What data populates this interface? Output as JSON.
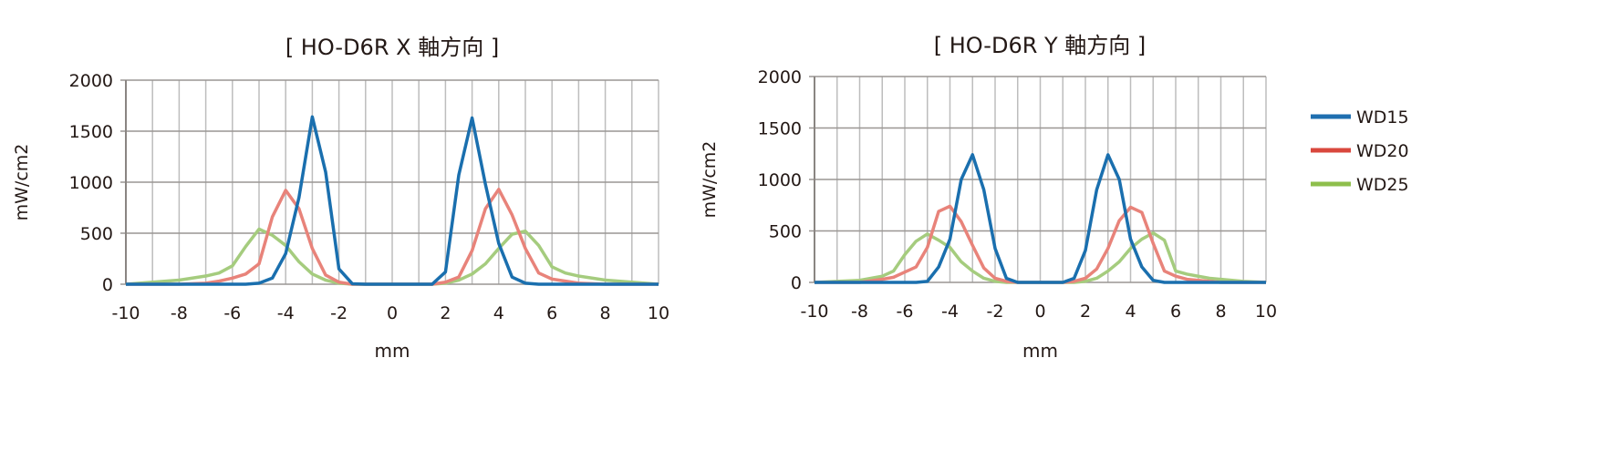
{
  "legend": [
    {
      "name": "WD15",
      "color": "#1a6fae"
    },
    {
      "name": "WD20",
      "color": "#e8837a"
    },
    {
      "name": "WD25",
      "color": "#a5cc7e"
    }
  ],
  "legend_colors": [
    "#1f6fb0",
    "#d9473d",
    "#8ebf4c"
  ],
  "chart_data": [
    {
      "type": "line",
      "title": "[ HO-D6R X 軸方向 ]",
      "xlabel": "mm",
      "ylabel": "mW/cm2",
      "xlim": [
        -10,
        10
      ],
      "ylim": [
        0,
        2000
      ],
      "xticks": [
        -10,
        -8,
        -6,
        -4,
        -2,
        0,
        2,
        4,
        6,
        8,
        10
      ],
      "yticks": [
        0,
        500,
        1000,
        1500,
        2000
      ],
      "series": [
        {
          "name": "WD15",
          "points": [
            [
              -10,
              0
            ],
            [
              -6,
              0
            ],
            [
              -5.5,
              0
            ],
            [
              -5,
              10
            ],
            [
              -4.5,
              60
            ],
            [
              -4,
              300
            ],
            [
              -3.5,
              850
            ],
            [
              -3,
              1640
            ],
            [
              -2.5,
              1100
            ],
            [
              -2,
              150
            ],
            [
              -1.5,
              5
            ],
            [
              -1,
              0
            ],
            [
              1.5,
              0
            ],
            [
              2,
              120
            ],
            [
              2.5,
              1070
            ],
            [
              3,
              1630
            ],
            [
              3.5,
              980
            ],
            [
              4,
              400
            ],
            [
              4.5,
              70
            ],
            [
              5,
              10
            ],
            [
              5.5,
              0
            ],
            [
              10,
              0
            ]
          ]
        },
        {
          "name": "WD20",
          "points": [
            [
              -10,
              0
            ],
            [
              -8,
              0
            ],
            [
              -7,
              10
            ],
            [
              -6.5,
              30
            ],
            [
              -6,
              60
            ],
            [
              -5.5,
              100
            ],
            [
              -5,
              200
            ],
            [
              -4.5,
              660
            ],
            [
              -4,
              920
            ],
            [
              -3.5,
              740
            ],
            [
              -3,
              350
            ],
            [
              -2.5,
              90
            ],
            [
              -2,
              20
            ],
            [
              -1.5,
              0
            ],
            [
              1.5,
              0
            ],
            [
              2,
              20
            ],
            [
              2.5,
              70
            ],
            [
              3,
              330
            ],
            [
              3.5,
              740
            ],
            [
              4,
              930
            ],
            [
              4.5,
              680
            ],
            [
              5,
              350
            ],
            [
              5.5,
              110
            ],
            [
              6,
              50
            ],
            [
              6.5,
              30
            ],
            [
              7,
              10
            ],
            [
              8,
              0
            ],
            [
              10,
              0
            ]
          ]
        },
        {
          "name": "WD25",
          "points": [
            [
              -10,
              0
            ],
            [
              -9.5,
              10
            ],
            [
              -9,
              20
            ],
            [
              -8.5,
              30
            ],
            [
              -8,
              40
            ],
            [
              -7.5,
              60
            ],
            [
              -7,
              80
            ],
            [
              -6.5,
              110
            ],
            [
              -6,
              180
            ],
            [
              -5.5,
              370
            ],
            [
              -5,
              540
            ],
            [
              -4.5,
              480
            ],
            [
              -4,
              380
            ],
            [
              -3.5,
              220
            ],
            [
              -3,
              100
            ],
            [
              -2.5,
              40
            ],
            [
              -2,
              10
            ],
            [
              -1.5,
              0
            ],
            [
              1.5,
              0
            ],
            [
              2,
              10
            ],
            [
              2.5,
              40
            ],
            [
              3,
              100
            ],
            [
              3.5,
              200
            ],
            [
              4,
              350
            ],
            [
              4.5,
              490
            ],
            [
              5,
              520
            ],
            [
              5.5,
              380
            ],
            [
              6,
              170
            ],
            [
              6.5,
              110
            ],
            [
              7,
              80
            ],
            [
              7.5,
              60
            ],
            [
              8,
              40
            ],
            [
              8.5,
              30
            ],
            [
              9,
              20
            ],
            [
              9.5,
              10
            ],
            [
              10,
              0
            ]
          ]
        }
      ]
    },
    {
      "type": "line",
      "title": "[ HO-D6R Y 軸方向 ]",
      "xlabel": "mm",
      "ylabel": "mW/cm2",
      "xlim": [
        -10,
        10
      ],
      "ylim": [
        0,
        2000
      ],
      "xticks": [
        -10,
        -8,
        -6,
        -4,
        -2,
        0,
        2,
        4,
        6,
        8,
        10
      ],
      "yticks": [
        0,
        500,
        1000,
        1500,
        2000
      ],
      "series": [
        {
          "name": "WD15",
          "points": [
            [
              -10,
              0
            ],
            [
              -5.5,
              0
            ],
            [
              -5,
              10
            ],
            [
              -4.5,
              150
            ],
            [
              -4,
              420
            ],
            [
              -3.5,
              1000
            ],
            [
              -3,
              1240
            ],
            [
              -2.5,
              900
            ],
            [
              -2,
              330
            ],
            [
              -1.5,
              40
            ],
            [
              -1,
              0
            ],
            [
              1,
              0
            ],
            [
              1.5,
              40
            ],
            [
              2,
              310
            ],
            [
              2.5,
              900
            ],
            [
              3,
              1240
            ],
            [
              3.5,
              1000
            ],
            [
              4,
              420
            ],
            [
              4.5,
              150
            ],
            [
              5,
              20
            ],
            [
              5.5,
              0
            ],
            [
              10,
              0
            ]
          ]
        },
        {
          "name": "WD20",
          "points": [
            [
              -10,
              0
            ],
            [
              -8,
              0
            ],
            [
              -7,
              30
            ],
            [
              -6.5,
              50
            ],
            [
              -6,
              100
            ],
            [
              -5.5,
              150
            ],
            [
              -5,
              340
            ],
            [
              -4.5,
              690
            ],
            [
              -4,
              740
            ],
            [
              -3.5,
              590
            ],
            [
              -3,
              360
            ],
            [
              -2.5,
              140
            ],
            [
              -2,
              40
            ],
            [
              -1.5,
              10
            ],
            [
              -1,
              0
            ],
            [
              1,
              0
            ],
            [
              1.5,
              10
            ],
            [
              2,
              40
            ],
            [
              2.5,
              130
            ],
            [
              3,
              330
            ],
            [
              3.5,
              600
            ],
            [
              4,
              730
            ],
            [
              4.5,
              680
            ],
            [
              5,
              380
            ],
            [
              5.5,
              110
            ],
            [
              6,
              60
            ],
            [
              6.5,
              30
            ],
            [
              7,
              20
            ],
            [
              8,
              0
            ],
            [
              10,
              0
            ]
          ]
        },
        {
          "name": "WD25",
          "points": [
            [
              -10,
              0
            ],
            [
              -9,
              10
            ],
            [
              -8,
              20
            ],
            [
              -7.5,
              40
            ],
            [
              -7,
              60
            ],
            [
              -6.5,
              110
            ],
            [
              -6,
              270
            ],
            [
              -5.5,
              400
            ],
            [
              -5,
              470
            ],
            [
              -4.5,
              410
            ],
            [
              -4,
              340
            ],
            [
              -3.5,
              200
            ],
            [
              -3,
              110
            ],
            [
              -2.5,
              40
            ],
            [
              -2,
              10
            ],
            [
              -1.5,
              0
            ],
            [
              1.5,
              0
            ],
            [
              2,
              10
            ],
            [
              2.5,
              40
            ],
            [
              3,
              110
            ],
            [
              3.5,
              200
            ],
            [
              4,
              330
            ],
            [
              4.5,
              420
            ],
            [
              5,
              480
            ],
            [
              5.5,
              410
            ],
            [
              6,
              110
            ],
            [
              6.5,
              80
            ],
            [
              7,
              60
            ],
            [
              7.5,
              40
            ],
            [
              8,
              30
            ],
            [
              9,
              10
            ],
            [
              10,
              0
            ]
          ]
        }
      ]
    }
  ]
}
